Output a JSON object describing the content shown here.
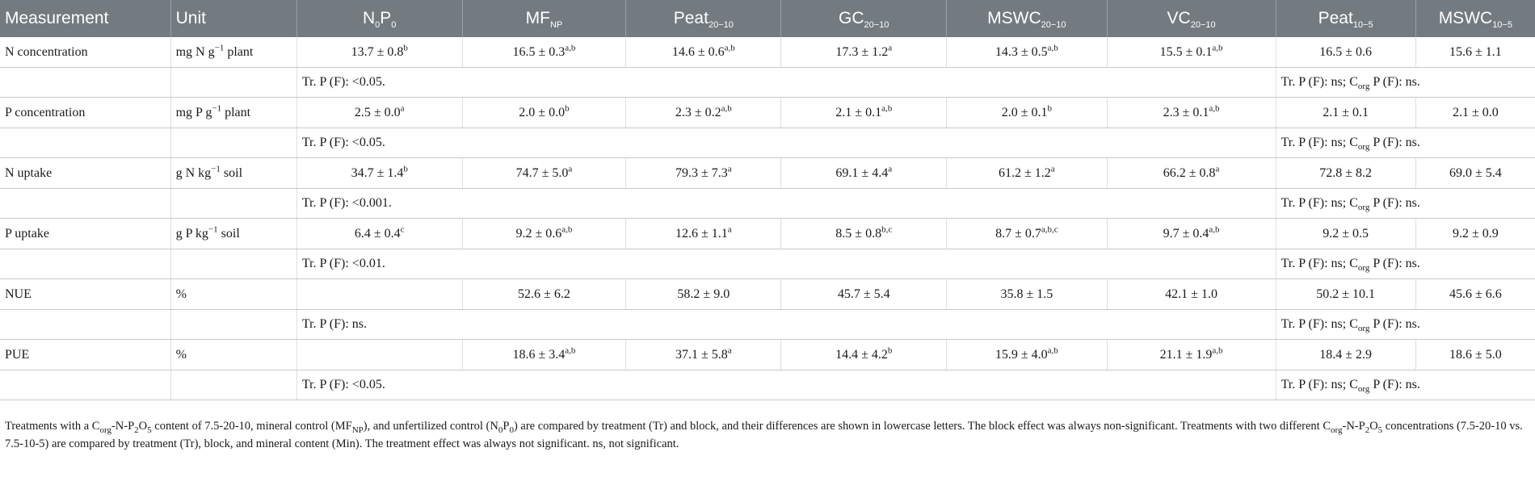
{
  "header": {
    "measurement": "Measurement",
    "unit": "Unit",
    "treatments": [
      {
        "base": "N",
        "sub1": "0",
        "mid": "P",
        "sub2": "0"
      },
      {
        "base": "MF",
        "sub1": "NP",
        "mid": "",
        "sub2": ""
      },
      {
        "base": "Peat",
        "sub1": "20−10",
        "mid": "",
        "sub2": ""
      },
      {
        "base": "GC",
        "sub1": "20−10",
        "mid": "",
        "sub2": ""
      },
      {
        "base": "MSWC",
        "sub1": "20−10",
        "mid": "",
        "sub2": ""
      },
      {
        "base": "VC",
        "sub1": "20−10",
        "mid": "",
        "sub2": ""
      },
      {
        "base": "Peat",
        "sub1": "10−5",
        "mid": "",
        "sub2": ""
      },
      {
        "base": "MSWC",
        "sub1": "10−5",
        "mid": "",
        "sub2": ""
      }
    ]
  },
  "rows": [
    {
      "measurement": "N concentration",
      "unit": {
        "pre": "mg N g",
        "sup": "−1",
        "post": " plant"
      },
      "values": [
        {
          "v": "13.7 ± 0.8",
          "s": "b"
        },
        {
          "v": "16.5 ± 0.3",
          "s": "a,b"
        },
        {
          "v": "14.6 ± 0.6",
          "s": "a,b"
        },
        {
          "v": "17.3 ± 1.2",
          "s": "a"
        },
        {
          "v": "14.3 ± 0.5",
          "s": "a,b"
        },
        {
          "v": "15.5 ± 0.1",
          "s": "a,b"
        },
        {
          "v": "16.5 ± 0.6",
          "s": ""
        },
        {
          "v": "15.6 ± 1.1",
          "s": ""
        }
      ],
      "stat1": "Tr. P (F): <0.05.",
      "stat2": {
        "pre": "Tr. P (F): ns; C",
        "sub": "org",
        "post": " P (F): ns."
      }
    },
    {
      "measurement": "P concentration",
      "unit": {
        "pre": "mg P g",
        "sup": "−1",
        "post": " plant"
      },
      "values": [
        {
          "v": "2.5 ± 0.0",
          "s": "a"
        },
        {
          "v": "2.0 ± 0.0",
          "s": "b"
        },
        {
          "v": "2.3 ± 0.2",
          "s": "a,b"
        },
        {
          "v": "2.1 ± 0.1",
          "s": "a,b"
        },
        {
          "v": "2.0 ± 0.1",
          "s": "b"
        },
        {
          "v": "2.3 ± 0.1",
          "s": "a,b"
        },
        {
          "v": "2.1 ± 0.1",
          "s": ""
        },
        {
          "v": "2.1 ± 0.0",
          "s": ""
        }
      ],
      "stat1": "Tr. P (F): <0.05.",
      "stat2": {
        "pre": "Tr. P (F): ns; C",
        "sub": "org",
        "post": " P (F): ns."
      }
    },
    {
      "measurement": "N uptake",
      "unit": {
        "pre": "g N kg",
        "sup": "−1",
        "post": " soil"
      },
      "values": [
        {
          "v": "34.7 ± 1.4",
          "s": "b"
        },
        {
          "v": "74.7 ± 5.0",
          "s": "a"
        },
        {
          "v": "79.3 ± 7.3",
          "s": "a"
        },
        {
          "v": "69.1 ± 4.4",
          "s": "a"
        },
        {
          "v": "61.2 ± 1.2",
          "s": "a"
        },
        {
          "v": "66.2 ± 0.8",
          "s": "a"
        },
        {
          "v": "72.8 ± 8.2",
          "s": ""
        },
        {
          "v": "69.0 ± 5.4",
          "s": ""
        }
      ],
      "stat1": "Tr. P (F): <0.001.",
      "stat2": {
        "pre": "Tr. P (F): ns; C",
        "sub": "org",
        "post": " P (F): ns."
      }
    },
    {
      "measurement": "P uptake",
      "unit": {
        "pre": "g P kg",
        "sup": "−1",
        "post": " soil"
      },
      "values": [
        {
          "v": "6.4 ± 0.4",
          "s": "c"
        },
        {
          "v": "9.2 ± 0.6",
          "s": "a,b"
        },
        {
          "v": "12.6 ± 1.1",
          "s": "a"
        },
        {
          "v": "8.5 ± 0.8",
          "s": "b,c"
        },
        {
          "v": "8.7 ± 0.7",
          "s": "a,b,c"
        },
        {
          "v": "9.7 ± 0.4",
          "s": "a,b"
        },
        {
          "v": "9.2 ± 0.5",
          "s": ""
        },
        {
          "v": "9.2 ± 0.9",
          "s": ""
        }
      ],
      "stat1": "Tr. P (F): <0.01.",
      "stat2": {
        "pre": "Tr. P (F): ns; C",
        "sub": "org",
        "post": " P (F): ns."
      }
    },
    {
      "measurement": "NUE",
      "unit": {
        "pre": "%",
        "sup": "",
        "post": ""
      },
      "values": [
        {
          "v": "",
          "s": ""
        },
        {
          "v": "52.6 ± 6.2",
          "s": ""
        },
        {
          "v": "58.2 ± 9.0",
          "s": ""
        },
        {
          "v": "45.7 ± 5.4",
          "s": ""
        },
        {
          "v": "35.8 ± 1.5",
          "s": ""
        },
        {
          "v": "42.1 ± 1.0",
          "s": ""
        },
        {
          "v": "50.2 ± 10.1",
          "s": ""
        },
        {
          "v": "45.6 ± 6.6",
          "s": ""
        }
      ],
      "stat1": "Tr. P (F): ns.",
      "stat2": {
        "pre": "Tr. P (F): ns; C",
        "sub": "org",
        "post": " P (F): ns."
      }
    },
    {
      "measurement": "PUE",
      "unit": {
        "pre": "%",
        "sup": "",
        "post": ""
      },
      "values": [
        {
          "v": "",
          "s": ""
        },
        {
          "v": "18.6 ± 3.4",
          "s": "a,b"
        },
        {
          "v": "37.1 ± 5.8",
          "s": "a"
        },
        {
          "v": "14.4 ± 4.2",
          "s": "b"
        },
        {
          "v": "15.9 ± 4.0",
          "s": "a,b"
        },
        {
          "v": "21.1 ± 1.9",
          "s": "a,b"
        },
        {
          "v": "18.4 ± 2.9",
          "s": ""
        },
        {
          "v": "18.6 ± 5.0",
          "s": ""
        }
      ],
      "stat1": "Tr. P (F): <0.05.",
      "stat2": {
        "pre": "Tr. P (F): ns; C",
        "sub": "org",
        "post": " P (F): ns."
      }
    }
  ],
  "footnote": {
    "p1": "Treatments with a C",
    "p1sub": "org",
    "p2": "-N-P",
    "p2sub": "2",
    "p3": "O",
    "p3sub": "5",
    "p4": " content of 7.5-20-10, mineral control (MF",
    "p4sub": "NP",
    "p5": "), and unfertilized control (N",
    "p5sub": "0",
    "p6": "P",
    "p6sub": "0",
    "p7": ") are compared by treatment (Tr) and block, and their differences are shown in lowercase letters. The block effect was always non-significant. Treatments with two different C",
    "p7sub": "org",
    "p8": "-N-P",
    "p8sub": "2",
    "p9": "O",
    "p9sub": "5",
    "p10": " concentrations (7.5-20-10 vs. 7.5-10-5) are compared by treatment (Tr), block, and mineral content (Min). The treatment effect was always not significant. ns, not significant."
  }
}
